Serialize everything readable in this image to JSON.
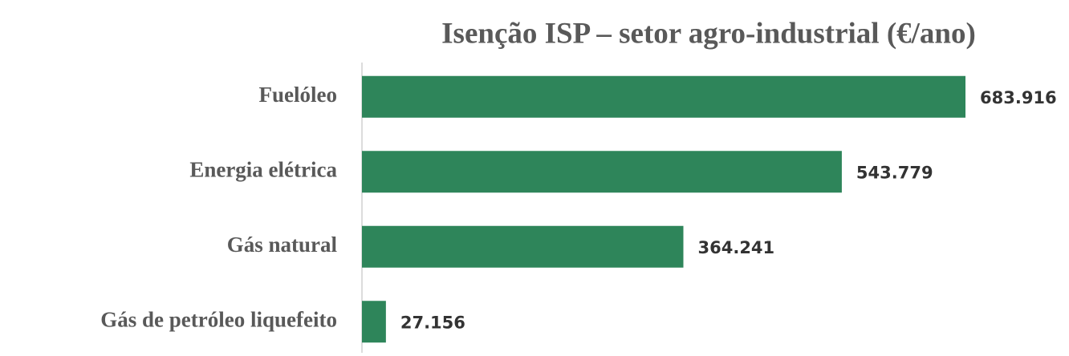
{
  "chart_data": {
    "type": "bar",
    "orientation": "horizontal",
    "title": "Isenção ISP – setor agro-industrial (€/ano)",
    "categories": [
      "Fuelóleo",
      "Energia elétrica",
      "Gás natural",
      "Gás de petróleo liquefeito"
    ],
    "values": [
      683916,
      543779,
      364241,
      27156
    ],
    "value_labels": [
      "683.916",
      "543.779",
      "364.241",
      "27.156"
    ],
    "color": "#2e855a"
  }
}
